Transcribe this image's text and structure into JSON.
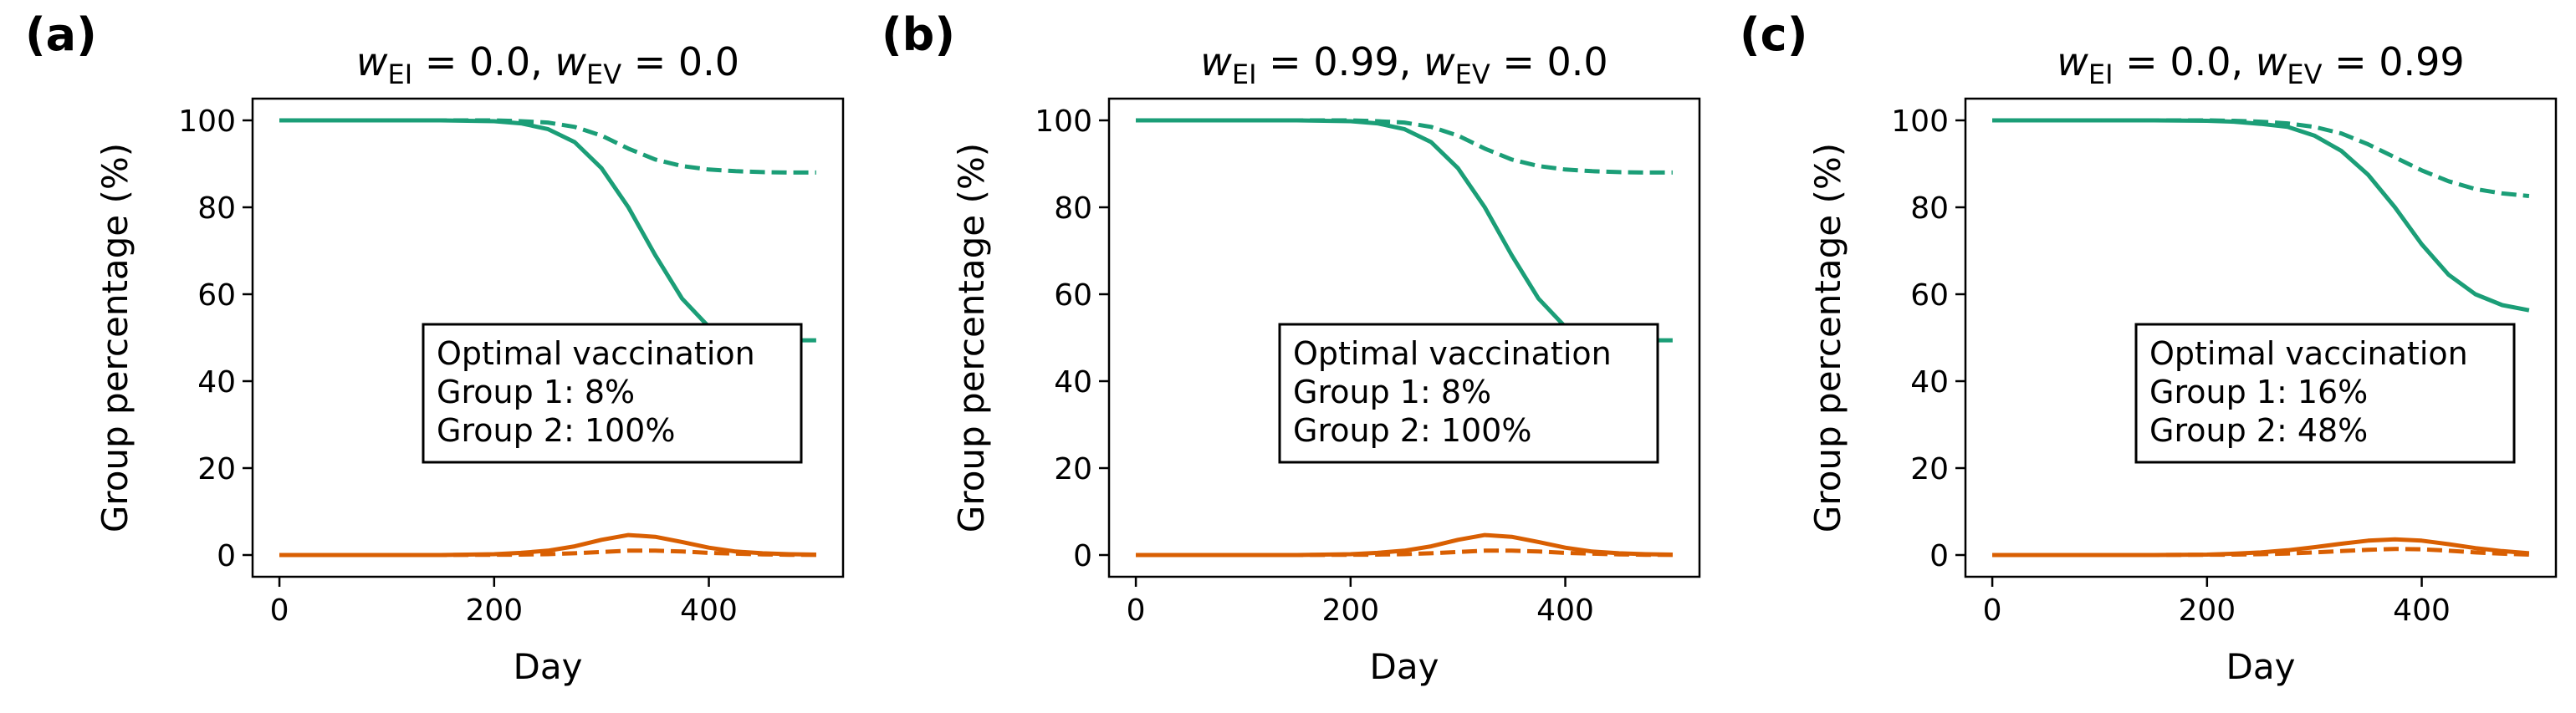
{
  "colors": {
    "green": "#1b9e77",
    "orange": "#d95f02"
  },
  "chart_data": [
    {
      "type": "line",
      "panel_label": "(a)",
      "title": {
        "w": "w",
        "sub1": "EI",
        "eq1": " = 0.0, ",
        "sub2": "EV",
        "eq2": " = 0.0"
      },
      "xlabel": "Day",
      "ylabel": "Group percentage (%)",
      "xlim": [
        -25,
        525
      ],
      "ylim": [
        -5,
        105
      ],
      "xticks": [
        0,
        200,
        400
      ],
      "yticks": [
        0,
        20,
        40,
        60,
        80,
        100
      ],
      "annotation": [
        "Optimal vaccination",
        "Group 1: 8%",
        "Group 2: 100%"
      ],
      "x": [
        0,
        50,
        100,
        150,
        200,
        225,
        250,
        275,
        300,
        325,
        350,
        375,
        400,
        425,
        450,
        475,
        500
      ],
      "series": [
        {
          "color": "green",
          "style": "solid",
          "values": [
            100,
            100,
            100,
            100,
            99.8,
            99.3,
            98,
            95,
            89,
            80,
            69,
            59,
            52.5,
            50,
            49.5,
            49.4,
            49.4
          ]
        },
        {
          "color": "green",
          "style": "dashed",
          "values": [
            100,
            100,
            100,
            100,
            100,
            99.8,
            99.5,
            98.5,
            96.5,
            93.5,
            91,
            89.5,
            88.7,
            88.3,
            88.1,
            88,
            88
          ]
        },
        {
          "color": "orange",
          "style": "solid",
          "values": [
            0,
            0,
            0,
            0,
            0.2,
            0.5,
            1,
            2,
            3.5,
            4.6,
            4.2,
            3,
            1.7,
            0.8,
            0.4,
            0.2,
            0.1
          ]
        },
        {
          "color": "orange",
          "style": "dashed",
          "values": [
            0,
            0,
            0,
            0,
            0.05,
            0.1,
            0.2,
            0.4,
            0.7,
            1,
            1,
            0.8,
            0.5,
            0.3,
            0.15,
            0.05,
            0.02
          ]
        }
      ]
    },
    {
      "type": "line",
      "panel_label": "(b)",
      "title": {
        "w": "w",
        "sub1": "EI",
        "eq1": " = 0.99, ",
        "sub2": "EV",
        "eq2": " = 0.0"
      },
      "xlabel": "Day",
      "ylabel": "Group percentage (%)",
      "xlim": [
        -25,
        525
      ],
      "ylim": [
        -5,
        105
      ],
      "xticks": [
        0,
        200,
        400
      ],
      "yticks": [
        0,
        20,
        40,
        60,
        80,
        100
      ],
      "annotation": [
        "Optimal vaccination",
        "Group 1: 8%",
        "Group 2: 100%"
      ],
      "x": [
        0,
        50,
        100,
        150,
        200,
        225,
        250,
        275,
        300,
        325,
        350,
        375,
        400,
        425,
        450,
        475,
        500
      ],
      "series": [
        {
          "color": "green",
          "style": "solid",
          "values": [
            100,
            100,
            100,
            100,
            99.8,
            99.3,
            98,
            95,
            89,
            80,
            69,
            59,
            52.5,
            50,
            49.5,
            49.4,
            49.4
          ]
        },
        {
          "color": "green",
          "style": "dashed",
          "values": [
            100,
            100,
            100,
            100,
            100,
            99.8,
            99.5,
            98.5,
            96.5,
            93.5,
            91,
            89.5,
            88.7,
            88.3,
            88.1,
            88,
            88
          ]
        },
        {
          "color": "orange",
          "style": "solid",
          "values": [
            0,
            0,
            0,
            0,
            0.2,
            0.5,
            1,
            2,
            3.5,
            4.6,
            4.2,
            3,
            1.7,
            0.8,
            0.4,
            0.2,
            0.1
          ]
        },
        {
          "color": "orange",
          "style": "dashed",
          "values": [
            0,
            0,
            0,
            0,
            0.05,
            0.1,
            0.2,
            0.4,
            0.7,
            1,
            1,
            0.8,
            0.5,
            0.3,
            0.15,
            0.05,
            0.02
          ]
        }
      ]
    },
    {
      "type": "line",
      "panel_label": "(c)",
      "title": {
        "w": "w",
        "sub1": "EI",
        "eq1": " = 0.0, ",
        "sub2": "EV",
        "eq2": " = 0.99"
      },
      "xlabel": "Day",
      "ylabel": "Group percentage (%)",
      "xlim": [
        -25,
        525
      ],
      "ylim": [
        -5,
        105
      ],
      "xticks": [
        0,
        200,
        400
      ],
      "yticks": [
        0,
        20,
        40,
        60,
        80,
        100
      ],
      "annotation": [
        "Optimal vaccination",
        "Group 1: 16%",
        "Group 2: 48%"
      ],
      "x": [
        0,
        50,
        100,
        150,
        200,
        225,
        250,
        275,
        300,
        325,
        350,
        375,
        400,
        425,
        450,
        475,
        500
      ],
      "series": [
        {
          "color": "green",
          "style": "solid",
          "values": [
            100,
            100,
            100,
            100,
            99.9,
            99.7,
            99.2,
            98.5,
            96.5,
            93,
            87.5,
            80,
            71.5,
            64.5,
            60,
            57.5,
            56.3
          ]
        },
        {
          "color": "green",
          "style": "dashed",
          "values": [
            100,
            100,
            100,
            100,
            100,
            99.9,
            99.7,
            99.3,
            98.5,
            97,
            94.5,
            91.5,
            88.5,
            86,
            84.2,
            83.2,
            82.6
          ]
        },
        {
          "color": "orange",
          "style": "solid",
          "values": [
            0,
            0,
            0,
            0,
            0.1,
            0.3,
            0.6,
            1.1,
            1.8,
            2.6,
            3.3,
            3.6,
            3.3,
            2.5,
            1.6,
            0.9,
            0.4
          ]
        },
        {
          "color": "orange",
          "style": "dashed",
          "values": [
            0,
            0,
            0,
            0,
            0.05,
            0.1,
            0.2,
            0.35,
            0.6,
            0.9,
            1.2,
            1.4,
            1.3,
            1,
            0.6,
            0.3,
            0.1
          ]
        }
      ]
    }
  ]
}
